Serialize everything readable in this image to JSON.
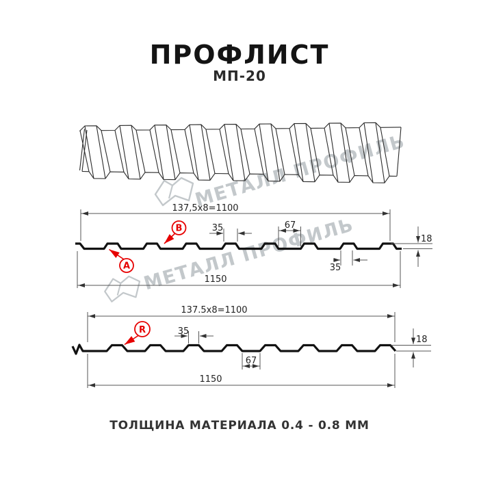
{
  "header": {
    "title": "ПРОФЛИСТ",
    "subtitle": "МП-20"
  },
  "watermark": {
    "text": "МЕТАЛЛ ПРОФИЛЬ"
  },
  "profile_top_view": {
    "description": "3d-perspective-corrugated-sheet"
  },
  "profile1": {
    "dim_top": "137,5x8=1100",
    "dim_rib_top": "35",
    "dim_valley": "67",
    "dim_height": "18",
    "dim_rib_bottom": "35",
    "dim_width": "1150",
    "label_a": "A",
    "label_b": "B"
  },
  "profile2": {
    "dim_top": "137.5x8=1100",
    "dim_rib_top": "35",
    "dim_valley": "67",
    "dim_height": "18",
    "dim_width": "1150",
    "label_r": "R"
  },
  "footer": {
    "text": "ТОЛЩИНА МАТЕРИАЛА 0.4 - 0.8 ММ"
  },
  "colors": {
    "ink": "#141414",
    "dim_line": "#444444",
    "accent_red": "#e60000",
    "watermark": "#c3c8cb"
  }
}
